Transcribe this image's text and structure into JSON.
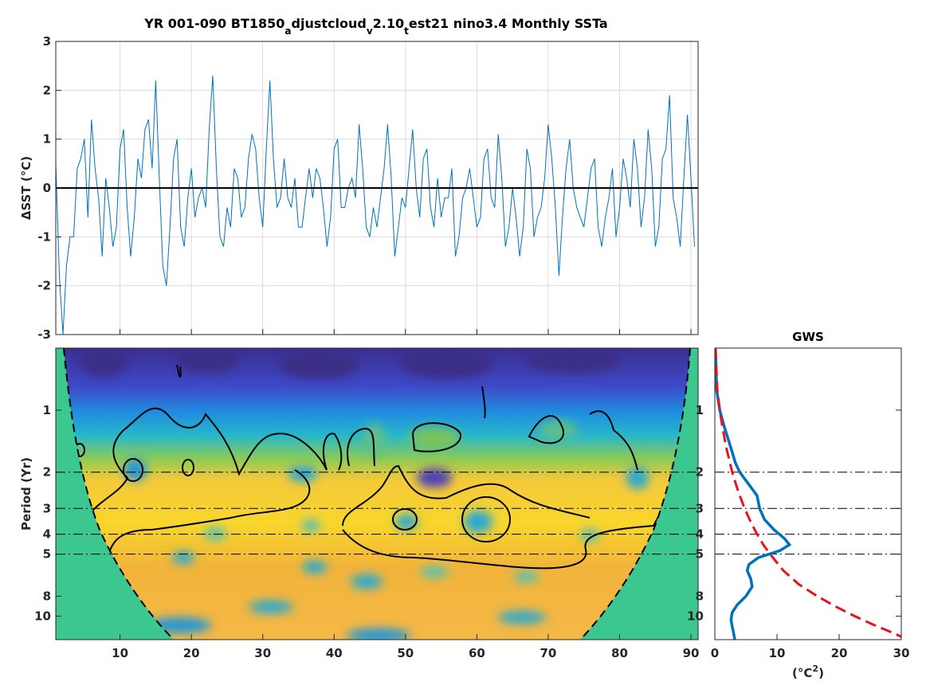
{
  "colors": {
    "series": "#0072BD",
    "gws": "#0072BD",
    "red_noise": "#E8141B",
    "coi_fill": "#3CC690",
    "zero_line": "#000000",
    "grid": "#DCDCDC"
  },
  "title": {
    "main_a": "YR 001-090 BT1850",
    "sub1": "a",
    "main_b": "djustcloud",
    "sub2": "v",
    "main_c": "2.10",
    "sub3": "t",
    "main_d": "est21 nino3.4 Monthly SSTa"
  },
  "chart_data": [
    {
      "type": "line",
      "panel": "time-series",
      "ylabel": "ΔSST (°C)",
      "xlim": [
        1,
        91
      ],
      "ylim": [
        -3,
        3
      ],
      "yticks": [
        "-3",
        "-2",
        "-1",
        "0",
        "1",
        "2",
        "3"
      ],
      "xticks": [
        "10",
        "20",
        "30",
        "40",
        "50",
        "60",
        "70",
        "80",
        "90"
      ],
      "grid": true,
      "reference_line_y": 0,
      "series": [
        {
          "x": [
            1,
            1.5,
            2,
            2.5,
            3,
            3.5,
            4,
            4.5,
            5,
            5.5,
            6,
            6.5,
            7,
            7.5,
            8,
            8.5,
            9,
            9.5,
            10,
            10.5,
            11,
            11.5,
            12,
            12.5,
            13,
            13.5,
            14,
            14.5,
            15,
            15.5,
            16,
            16.5,
            17,
            17.5,
            18,
            18.5,
            19,
            19.5,
            20,
            20.5,
            21,
            21.5,
            22,
            22.5,
            23,
            23.5,
            24,
            24.5,
            25,
            25.5,
            26,
            26.5,
            27,
            27.5,
            28,
            28.5,
            29,
            29.5,
            30,
            30.5,
            31,
            31.5,
            32,
            32.5,
            33,
            33.5,
            34,
            34.5,
            35,
            35.5,
            36,
            36.5,
            37,
            37.5,
            38,
            38.5,
            39,
            39.5,
            40,
            40.5,
            41,
            41.5,
            42,
            42.5,
            43,
            43.5,
            44,
            44.5,
            45,
            45.5,
            46,
            46.5,
            47,
            47.5,
            48,
            48.5,
            49,
            49.5,
            50,
            50.5,
            51,
            51.5,
            52,
            52.5,
            53,
            53.5,
            54,
            54.5,
            55,
            55.5,
            56,
            56.5,
            57,
            57.5,
            58,
            58.5,
            59,
            59.5,
            60,
            60.5,
            61,
            61.5,
            62,
            62.5,
            63,
            63.5,
            64,
            64.5,
            65,
            65.5,
            66,
            66.5,
            67,
            67.5,
            68,
            68.5,
            69,
            69.5,
            70,
            70.5,
            71,
            71.5,
            72,
            72.5,
            73,
            73.5,
            74,
            74.5,
            75,
            75.5,
            76,
            76.5,
            77,
            77.5,
            78,
            78.5,
            79,
            79.5,
            80,
            80.5,
            81,
            81.5,
            82,
            82.5,
            83,
            83.5,
            84,
            84.5,
            85,
            85.5,
            86,
            86.5,
            87,
            87.5,
            88,
            88.5,
            89,
            89.5,
            90,
            90.5
          ],
          "y": [
            0.5,
            -1.8,
            -3.0,
            -1.6,
            -1.0,
            -1.0,
            0.4,
            0.6,
            1.0,
            -0.6,
            1.4,
            0.4,
            -0.2,
            -1.4,
            0.2,
            -0.4,
            -1.2,
            -0.8,
            0.8,
            1.2,
            -0.4,
            -1.4,
            -0.6,
            0.6,
            0.2,
            1.2,
            1.4,
            0.4,
            2.2,
            0.2,
            -1.6,
            -2.0,
            -0.8,
            0.6,
            1.0,
            -0.8,
            -1.2,
            -0.2,
            0.4,
            -0.6,
            -0.2,
            0.0,
            -0.4,
            1.2,
            2.3,
            0.4,
            -1.0,
            -1.2,
            -0.4,
            -0.8,
            0.4,
            0.2,
            -0.6,
            -0.4,
            0.6,
            1.1,
            0.8,
            -0.2,
            -0.8,
            0.8,
            2.2,
            0.6,
            -0.4,
            -0.2,
            0.6,
            -0.2,
            -0.4,
            0.2,
            -0.8,
            -0.8,
            -0.2,
            0.4,
            -0.2,
            0.4,
            0.2,
            -0.4,
            -1.2,
            -0.6,
            0.8,
            1.0,
            -0.4,
            -0.4,
            0.0,
            0.2,
            -0.2,
            1.3,
            0.4,
            -0.8,
            -1.0,
            -0.4,
            -0.8,
            -0.2,
            0.4,
            1.3,
            0.2,
            -1.4,
            -0.8,
            -0.2,
            -0.4,
            0.4,
            1.2,
            0.0,
            -0.6,
            0.6,
            0.8,
            -0.4,
            -0.8,
            0.2,
            -0.6,
            -0.2,
            -0.2,
            0.4,
            -1.4,
            -1.0,
            -0.2,
            0.0,
            0.4,
            -0.2,
            -0.8,
            -0.6,
            0.6,
            0.8,
            -0.2,
            -0.4,
            1.1,
            0.2,
            -1.2,
            -0.8,
            0.0,
            -0.6,
            -1.4,
            -0.8,
            0.8,
            0.4,
            -1.0,
            -0.6,
            -0.4,
            0.2,
            1.3,
            0.6,
            -0.4,
            -1.8,
            -0.6,
            0.4,
            1.0,
            0.0,
            -0.4,
            -0.6,
            -0.8,
            -0.2,
            0.4,
            0.6,
            -0.8,
            -1.2,
            -0.6,
            -0.2,
            0.4,
            -1.0,
            -0.4,
            0.6,
            0.2,
            -0.4,
            1.0,
            0.4,
            -0.8,
            -0.2,
            1.2,
            0.4,
            -1.2,
            -0.8,
            0.6,
            0.8,
            1.9,
            -0.2,
            -0.6,
            -1.2,
            0.2,
            1.5,
            0.2,
            -1.2
          ]
        }
      ]
    },
    {
      "type": "heatmap",
      "panel": "wavelet-power",
      "ylabel": "Period (Yr)",
      "xlim": [
        1,
        91
      ],
      "yticks": [
        "1",
        "2",
        "3",
        "4",
        "5",
        "8",
        "10"
      ],
      "ytick_values": [
        1,
        2,
        3,
        4,
        5,
        8,
        10
      ],
      "yscale": "log",
      "ylim": [
        0.5,
        13
      ],
      "xticks": [
        "10",
        "20",
        "30",
        "40",
        "50",
        "60",
        "70",
        "80",
        "90"
      ],
      "reference_periods": [
        2,
        3,
        4,
        5
      ],
      "colormap": "parula",
      "cone_of_influence": true
    },
    {
      "type": "line",
      "panel": "global-wavelet-spectrum",
      "title": "GWS",
      "xlabel": "(°C²)",
      "xlabel_base": "(",
      "xlabel_unit": "°C",
      "xlabel_sup": "2",
      "xlabel_close": ")",
      "xlim": [
        0,
        30
      ],
      "xticks": [
        "0",
        "10",
        "20",
        "30"
      ],
      "yticks": [
        "1",
        "2",
        "3",
        "4",
        "5",
        "8",
        "10"
      ],
      "yscale": "log",
      "ylim": [
        0.5,
        13
      ],
      "series": [
        {
          "style": "solid",
          "period": [
            0.5,
            0.8,
            1.0,
            1.2,
            1.4,
            1.6,
            1.8,
            2.0,
            2.3,
            2.6,
            3.0,
            3.4,
            3.8,
            4.2,
            4.5,
            4.8,
            5.2,
            5.6,
            6.0,
            6.6,
            7.2,
            8.0,
            8.8,
            9.6,
            10.4,
            11.2,
            12.0,
            13.0
          ],
          "power": [
            0.1,
            0.3,
            0.8,
            1.5,
            2.2,
            2.8,
            3.3,
            4.0,
            5.5,
            6.8,
            7.2,
            8.0,
            9.5,
            11.2,
            12.0,
            10.5,
            7.0,
            5.5,
            5.2,
            5.8,
            6.0,
            5.0,
            3.6,
            2.8,
            2.6,
            2.8,
            3.0,
            3.2
          ]
        },
        {
          "style": "dashed",
          "period": [
            0.5,
            0.8,
            1.0,
            1.2,
            1.5,
            2.0,
            2.5,
            3.0,
            3.5,
            4.0,
            4.5,
            5.0,
            6.0,
            7.0,
            8.0,
            9.0,
            10.0,
            11.0,
            12.0,
            13.0
          ],
          "power": [
            0.1,
            0.4,
            0.8,
            1.2,
            1.8,
            2.8,
            3.8,
            4.8,
            5.8,
            6.8,
            7.8,
            8.9,
            11.0,
            13.5,
            16.5,
            19.5,
            22.5,
            25.5,
            28.5,
            31.0
          ]
        }
      ]
    }
  ]
}
